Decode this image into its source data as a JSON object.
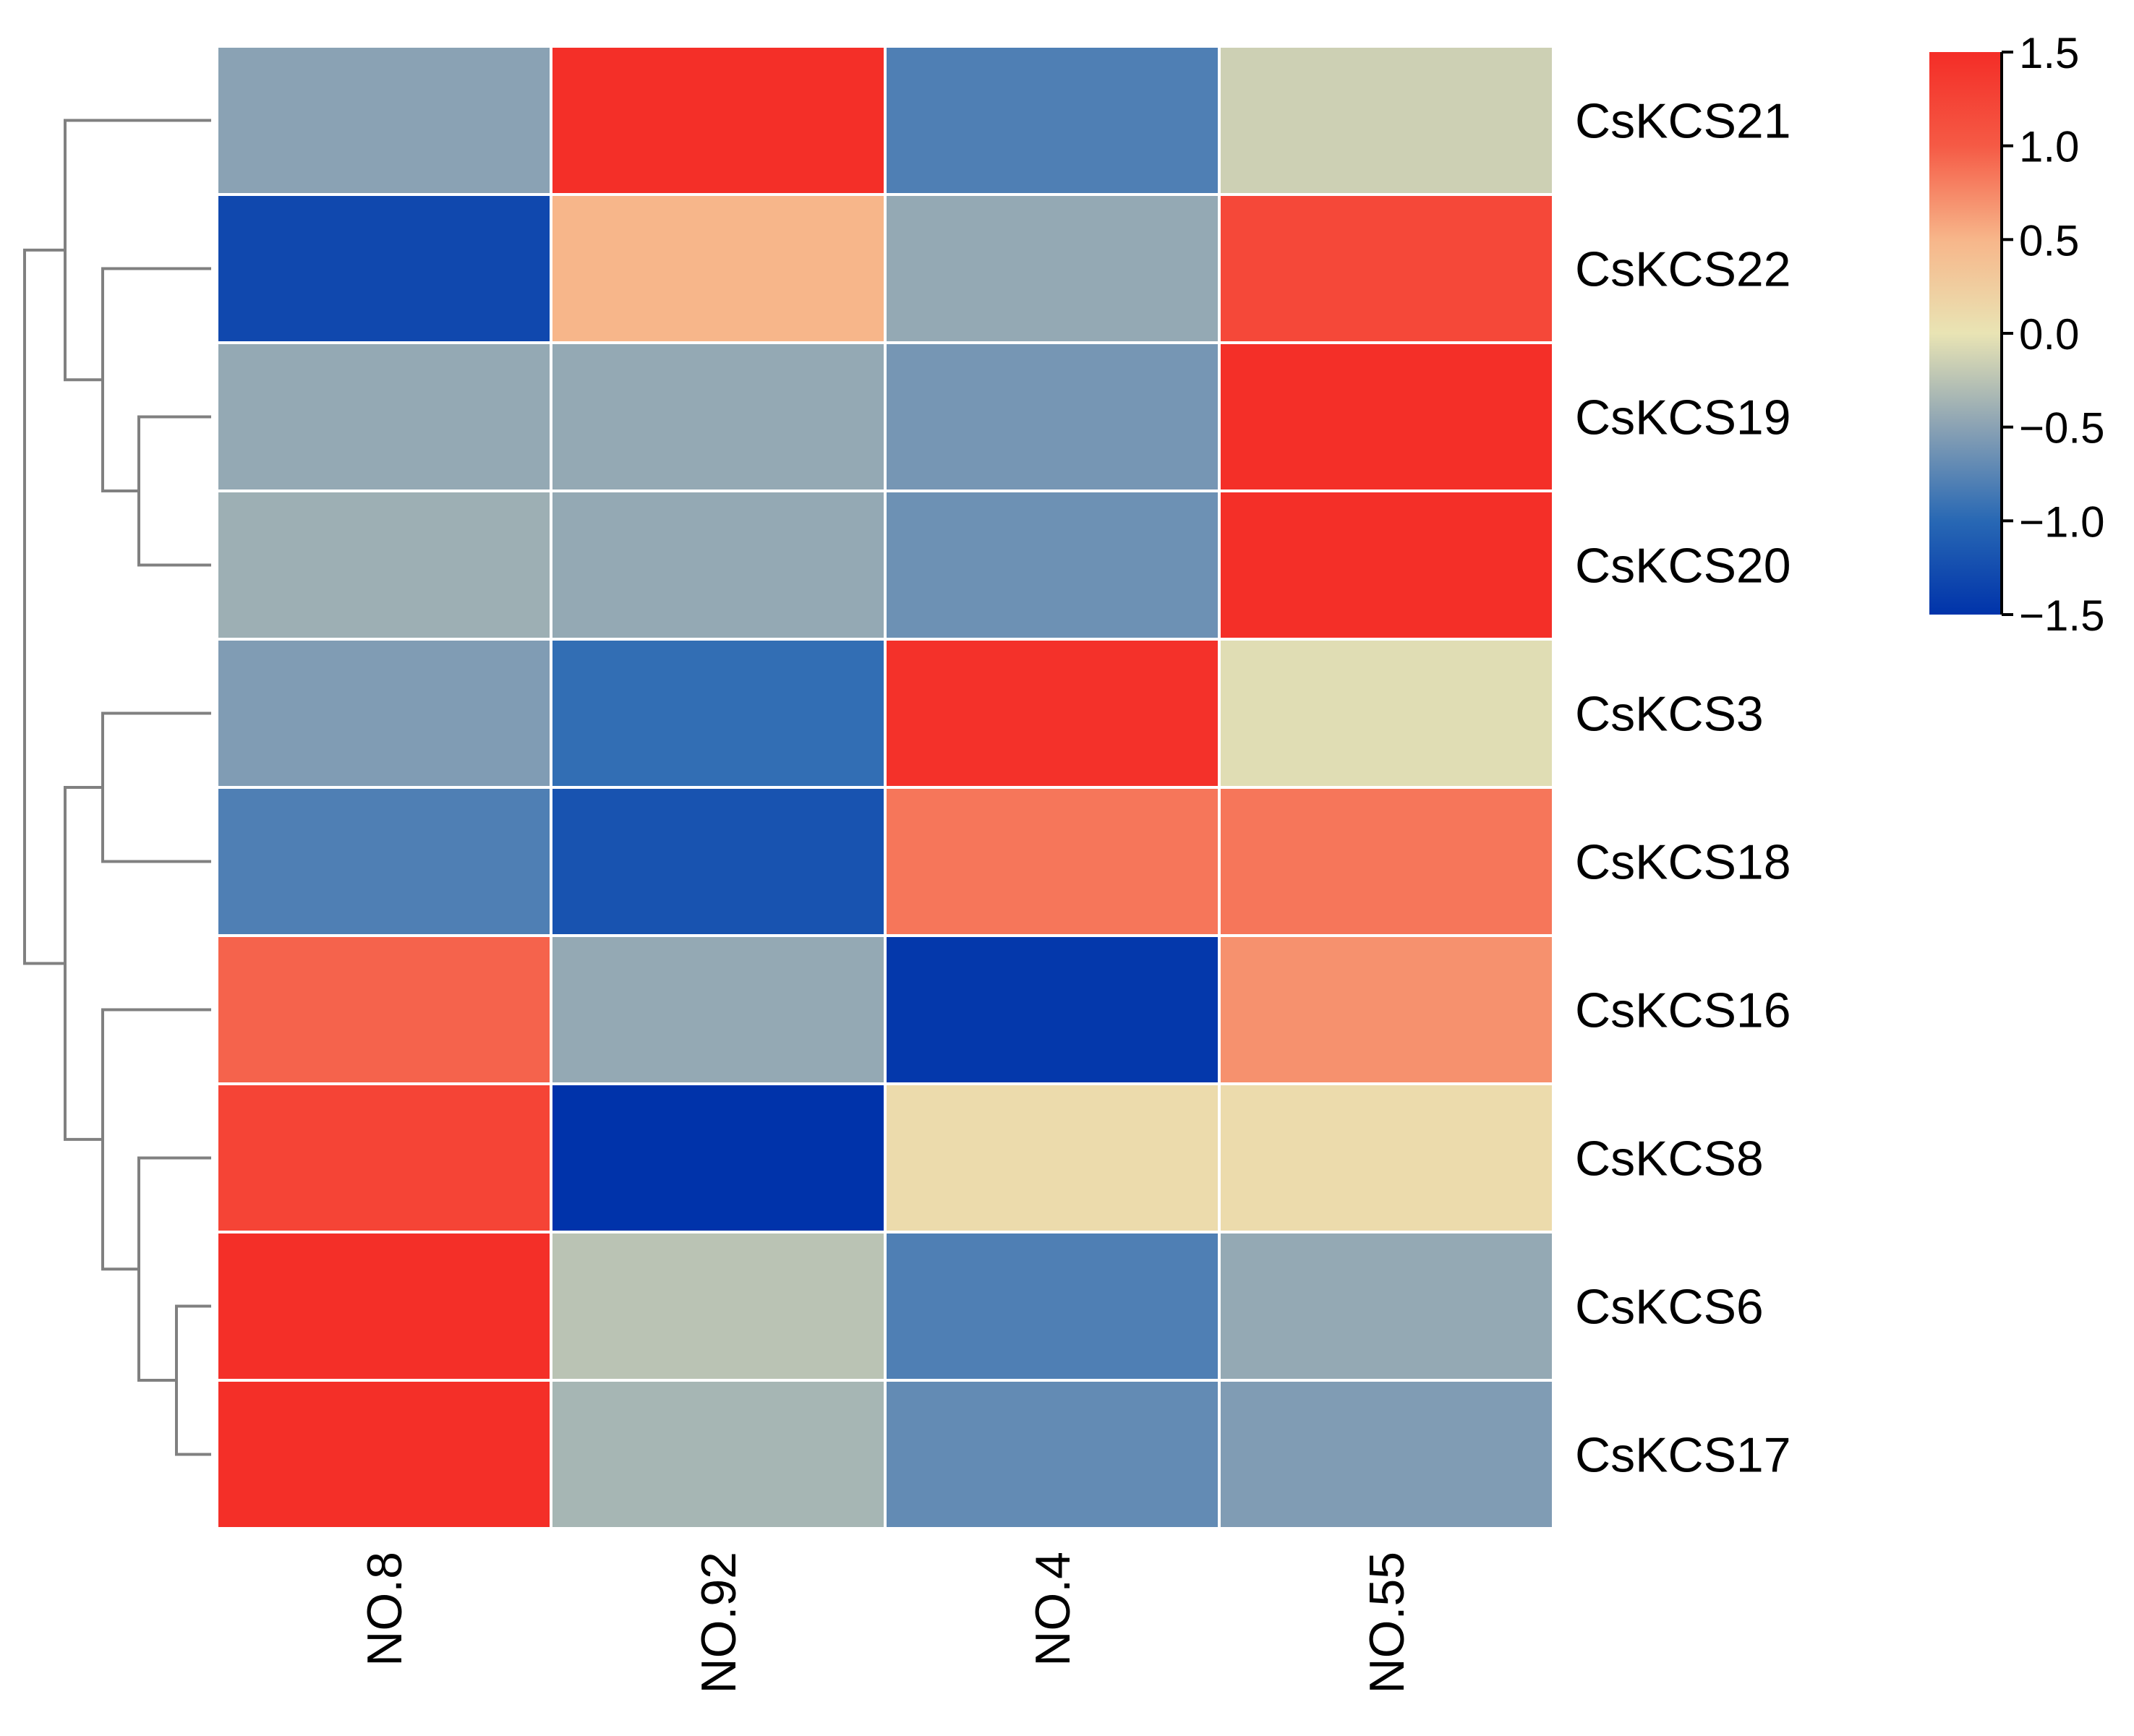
{
  "chart_data": {
    "type": "heatmap",
    "title": "",
    "columns": [
      "NO.8",
      "NO.92",
      "NO.4",
      "NO.55"
    ],
    "rows": [
      "CsKCS21",
      "CsKCS22",
      "CsKCS19",
      "CsKCS20",
      "CsKCS3",
      "CsKCS18",
      "CsKCS16",
      "CsKCS8",
      "CsKCS6",
      "CsKCS17"
    ],
    "values": [
      [
        -0.5,
        1.48,
        -0.8,
        -0.15
      ],
      [
        -1.3,
        0.5,
        -0.45,
        1.2
      ],
      [
        -0.45,
        -0.45,
        -0.6,
        1.48
      ],
      [
        -0.4,
        -0.45,
        -0.65,
        1.48
      ],
      [
        -0.55,
        -0.95,
        1.45,
        -0.05
      ],
      [
        -0.8,
        -1.2,
        0.85,
        0.85
      ],
      [
        0.95,
        -0.45,
        -1.45,
        0.7
      ],
      [
        1.25,
        -1.5,
        0.1,
        0.1
      ],
      [
        1.48,
        -0.25,
        -0.8,
        -0.45
      ],
      [
        1.48,
        -0.35,
        -0.7,
        -0.55
      ]
    ],
    "colorbar": {
      "min": -1.5,
      "max": 1.5,
      "ticks": [
        1.5,
        1.0,
        0.5,
        0.0,
        -0.5,
        -1.0,
        -1.5
      ],
      "tick_labels": [
        "1.5",
        "1.0",
        "0.5",
        "0.0",
        "−0.5",
        "−1.0",
        "−1.5"
      ],
      "colors": [
        "#0033aa",
        "#2868b4",
        "#8aa2b4",
        "#e9e4b4",
        "#f7b68a",
        "#f55a45",
        "#f42d27"
      ]
    },
    "dendrogram": {
      "side": "left",
      "merges": [
        [
          "CsKCS19",
          "CsKCS20"
        ],
        [
          "CsKCS22",
          "(CsKCS19,CsKCS20)"
        ],
        [
          "CsKCS21",
          "(CsKCS22,CsKCS19,CsKCS20)"
        ],
        [
          "CsKCS3",
          "CsKCS18"
        ],
        [
          "CsKCS6",
          "CsKCS17"
        ],
        [
          "CsKCS8",
          "(CsKCS6,CsKCS17)"
        ],
        [
          "CsKCS16",
          "(CsKCS8,CsKCS6,CsKCS17)"
        ],
        [
          "(CsKCS3,CsKCS18)",
          "(CsKCS16,CsKCS8,CsKCS6,CsKCS17)"
        ],
        [
          "top cluster",
          "bottom cluster"
        ]
      ],
      "line_color": "#808080"
    },
    "grid_line_color": "#ffffff"
  }
}
